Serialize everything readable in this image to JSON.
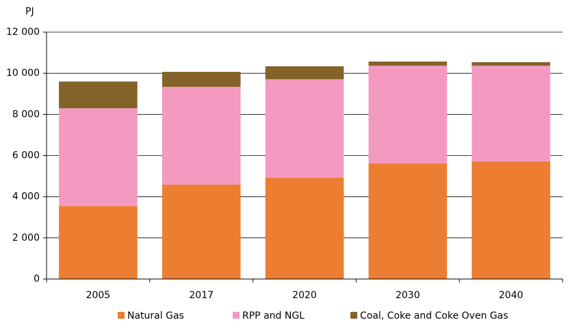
{
  "chart_data": {
    "type": "bar",
    "stacked": true,
    "y_label": "PJ",
    "categories": [
      "2005",
      "2017",
      "2020",
      "2030",
      "2040"
    ],
    "series": [
      {
        "name": "Natural Gas",
        "color": "#ed7d31",
        "values": [
          3550,
          4590,
          4920,
          5620,
          5720
        ]
      },
      {
        "name": "RPP and NGL",
        "color": "#f49ac1",
        "values": [
          4750,
          4750,
          4790,
          4750,
          4650
        ]
      },
      {
        "name": "Coal, Coke and Coke Oven Gas",
        "color": "#84632a",
        "values": [
          1300,
          730,
          630,
          200,
          170
        ]
      }
    ],
    "ylim": [
      0,
      12000
    ],
    "yticks": [
      0,
      {
        "value": 2000,
        "label": "2 000"
      },
      {
        "value": 4000,
        "label": "4 000"
      },
      {
        "value": 6000,
        "label": "6 000"
      },
      {
        "value": 8000,
        "label": "8 000"
      },
      {
        "value": 10000,
        "label": "10 000"
      },
      {
        "value": 12000,
        "label": "12 000"
      }
    ],
    "grid": true,
    "legend": "bottom"
  }
}
